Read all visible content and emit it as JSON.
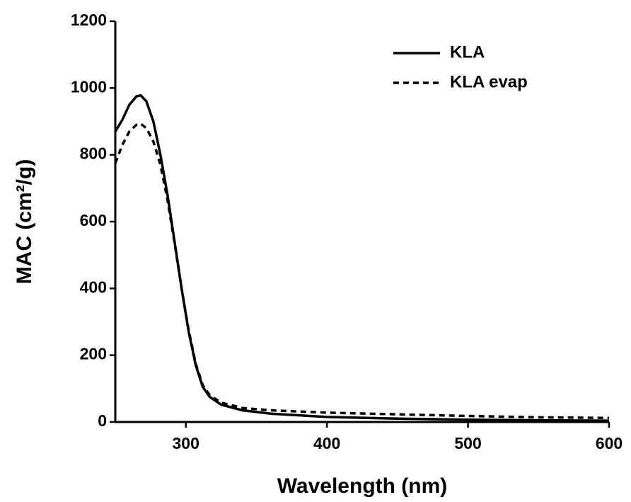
{
  "chart_data": {
    "type": "line",
    "x_label": "Wavelength (nm)",
    "y_label": "MAC (cm²/g)",
    "x": [
      250,
      255,
      260,
      265,
      268,
      272,
      277,
      282,
      287,
      292,
      297,
      302,
      307,
      312,
      317,
      325,
      340,
      360,
      400,
      450,
      500,
      550,
      600
    ],
    "series": [
      {
        "name": "KLA",
        "color": "#000000",
        "dash": "solid",
        "values": [
          870,
          905,
          950,
          975,
          978,
          960,
          900,
          800,
          680,
          540,
          400,
          270,
          170,
          105,
          75,
          52,
          35,
          25,
          15,
          10,
          7,
          5,
          4
        ]
      },
      {
        "name": "KLA evap",
        "color": "#000000",
        "dash": "dashed",
        "values": [
          775,
          830,
          870,
          890,
          893,
          880,
          840,
          770,
          665,
          535,
          400,
          275,
          175,
          110,
          80,
          58,
          42,
          35,
          28,
          23,
          18,
          14,
          12
        ]
      }
    ],
    "xlim": [
      250,
      600
    ],
    "ylim": [
      0,
      1200
    ],
    "xticks": [
      300,
      400,
      500,
      600
    ],
    "yticks": [
      0,
      200,
      400,
      600,
      800,
      1000,
      1200
    ],
    "legend": "upper right",
    "grid": false
  }
}
